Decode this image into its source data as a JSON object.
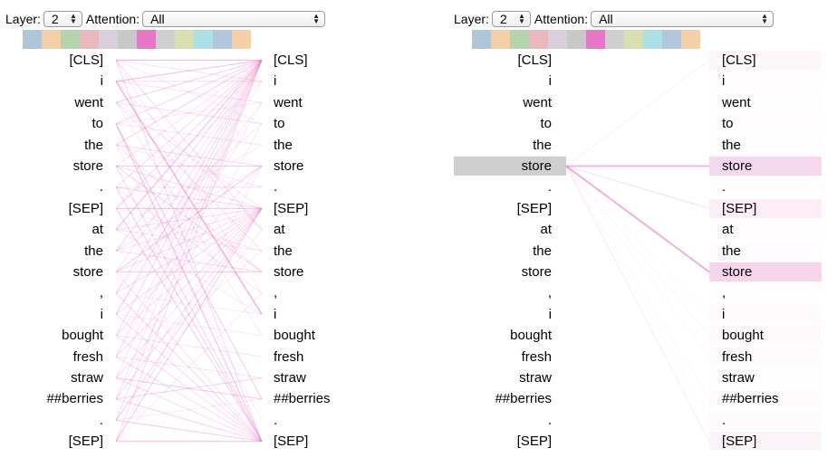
{
  "controls": {
    "layer_label": "Layer:",
    "layer_value": "2",
    "attention_label": "Attention:",
    "attention_value": "All"
  },
  "head_colors": [
    "#aec6dc",
    "#f3cfaa",
    "#b4d4ae",
    "#e9b8bd",
    "#d8d0de",
    "#c8c8c8",
    "#e679c5",
    "#cfcfcf",
    "#d9dfb0",
    "#ade0e4",
    "#b2c7d9",
    "#f3cfaa"
  ],
  "selected_head_index": 6,
  "attention_color": "#e679c5",
  "tokens": [
    "[CLS]",
    "i",
    "went",
    "to",
    "the",
    "store",
    ".",
    "[SEP]",
    "at",
    "the",
    "store",
    ",",
    "i",
    "bought",
    "fresh",
    "straw",
    "##berries",
    ".",
    "[SEP]"
  ],
  "left_view": {
    "attention": [
      [
        0,
        0,
        0.45
      ],
      [
        0,
        1,
        0.2
      ],
      [
        0,
        3,
        0.15
      ],
      [
        0,
        8,
        0.25
      ],
      [
        0,
        11,
        0.15
      ],
      [
        0,
        18,
        0.3
      ],
      [
        1,
        0,
        0.4
      ],
      [
        1,
        2,
        0.2
      ],
      [
        1,
        12,
        0.5
      ],
      [
        1,
        8,
        0.15
      ],
      [
        1,
        1,
        0.25
      ],
      [
        2,
        0,
        0.35
      ],
      [
        2,
        3,
        0.25
      ],
      [
        2,
        9,
        0.2
      ],
      [
        2,
        7,
        0.2
      ],
      [
        2,
        13,
        0.15
      ],
      [
        3,
        0,
        0.3
      ],
      [
        3,
        4,
        0.2
      ],
      [
        3,
        16,
        0.35
      ],
      [
        3,
        18,
        0.4
      ],
      [
        3,
        2,
        0.15
      ],
      [
        4,
        0,
        0.35
      ],
      [
        4,
        5,
        0.25
      ],
      [
        4,
        10,
        0.2
      ],
      [
        4,
        6,
        0.15
      ],
      [
        4,
        17,
        0.15
      ],
      [
        5,
        5,
        0.35
      ],
      [
        5,
        10,
        0.3
      ],
      [
        5,
        7,
        0.25
      ],
      [
        5,
        18,
        0.3
      ],
      [
        5,
        0,
        0.2
      ],
      [
        6,
        7,
        0.3
      ],
      [
        6,
        18,
        0.35
      ],
      [
        6,
        0,
        0.25
      ],
      [
        6,
        11,
        0.2
      ],
      [
        6,
        6,
        0.2
      ],
      [
        7,
        7,
        0.4
      ],
      [
        7,
        18,
        0.35
      ],
      [
        7,
        0,
        0.3
      ],
      [
        7,
        1,
        0.15
      ],
      [
        7,
        9,
        0.15
      ],
      [
        8,
        0,
        0.4
      ],
      [
        8,
        9,
        0.2
      ],
      [
        8,
        7,
        0.25
      ],
      [
        8,
        12,
        0.15
      ],
      [
        8,
        4,
        0.15
      ],
      [
        9,
        0,
        0.3
      ],
      [
        9,
        10,
        0.25
      ],
      [
        9,
        5,
        0.2
      ],
      [
        9,
        7,
        0.2
      ],
      [
        9,
        3,
        0.15
      ],
      [
        10,
        5,
        0.35
      ],
      [
        10,
        10,
        0.3
      ],
      [
        10,
        7,
        0.25
      ],
      [
        10,
        18,
        0.2
      ],
      [
        10,
        0,
        0.2
      ],
      [
        11,
        18,
        0.3
      ],
      [
        11,
        7,
        0.25
      ],
      [
        11,
        0,
        0.25
      ],
      [
        11,
        12,
        0.15
      ],
      [
        11,
        2,
        0.15
      ],
      [
        12,
        0,
        0.3
      ],
      [
        12,
        7,
        0.25
      ],
      [
        12,
        18,
        0.25
      ],
      [
        12,
        1,
        0.15
      ],
      [
        12,
        13,
        0.15
      ],
      [
        13,
        0,
        0.3
      ],
      [
        13,
        7,
        0.2
      ],
      [
        13,
        14,
        0.2
      ],
      [
        13,
        18,
        0.25
      ],
      [
        13,
        5,
        0.15
      ],
      [
        14,
        7,
        0.25
      ],
      [
        14,
        18,
        0.25
      ],
      [
        14,
        0,
        0.2
      ],
      [
        14,
        15,
        0.2
      ],
      [
        14,
        2,
        0.15
      ],
      [
        15,
        16,
        0.35
      ],
      [
        15,
        7,
        0.2
      ],
      [
        15,
        18,
        0.25
      ],
      [
        15,
        0,
        0.2
      ],
      [
        15,
        9,
        0.15
      ],
      [
        16,
        15,
        0.3
      ],
      [
        16,
        7,
        0.25
      ],
      [
        16,
        18,
        0.3
      ],
      [
        16,
        0,
        0.2
      ],
      [
        16,
        3,
        0.15
      ],
      [
        17,
        18,
        0.35
      ],
      [
        17,
        7,
        0.3
      ],
      [
        17,
        0,
        0.25
      ],
      [
        17,
        16,
        0.15
      ],
      [
        17,
        8,
        0.15
      ],
      [
        18,
        18,
        0.4
      ],
      [
        18,
        7,
        0.35
      ],
      [
        18,
        0,
        0.3
      ],
      [
        18,
        11,
        0.15
      ],
      [
        18,
        5,
        0.15
      ]
    ]
  },
  "right_view": {
    "selected_token_index": 5,
    "attention": [
      [
        5,
        5,
        0.55
      ],
      [
        5,
        10,
        0.6
      ],
      [
        5,
        7,
        0.25
      ],
      [
        5,
        18,
        0.15
      ],
      [
        5,
        0,
        0.12
      ],
      [
        5,
        13,
        0.08
      ],
      [
        5,
        16,
        0.06
      ],
      [
        5,
        14,
        0.06
      ],
      [
        5,
        12,
        0.05
      ],
      [
        5,
        17,
        0.05
      ]
    ],
    "right_token_weights": [
      0.12,
      0.03,
      0.04,
      0.03,
      0.04,
      0.55,
      0.03,
      0.25,
      0.03,
      0.04,
      0.6,
      0.03,
      0.05,
      0.08,
      0.06,
      0.04,
      0.06,
      0.05,
      0.15
    ]
  }
}
